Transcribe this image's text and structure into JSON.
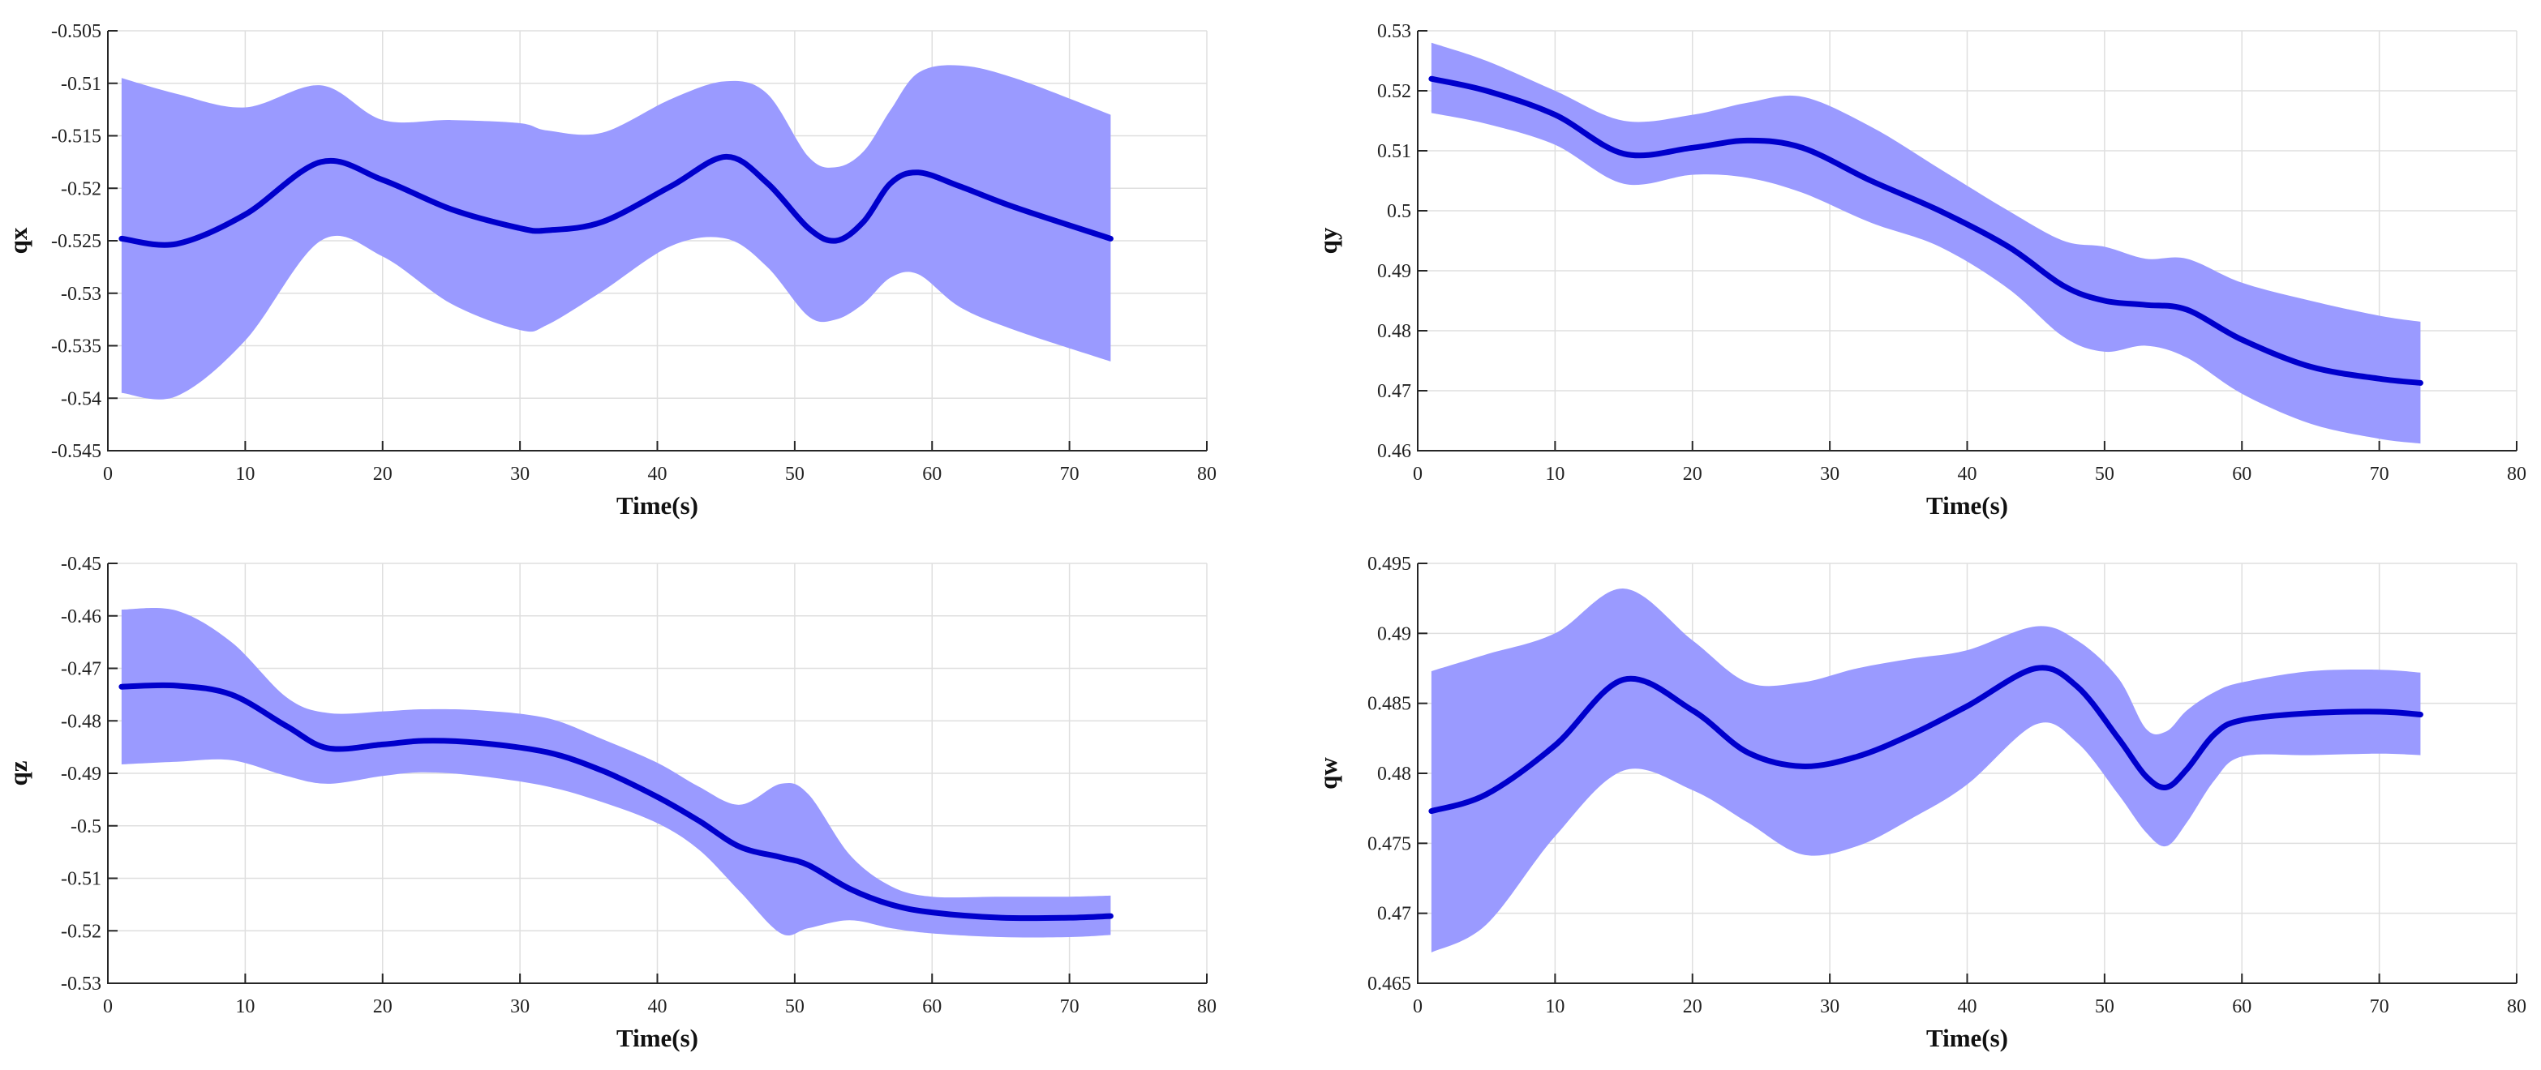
{
  "colors": {
    "mean": "#0000CC",
    "band": "#9A9AFF",
    "grid": "#DFDFDF",
    "axis": "#262626"
  },
  "chart_data": [
    {
      "type": "line",
      "name": "qx",
      "xlabel": "Time(s)",
      "ylabel": "qx",
      "xlim": [
        0,
        80
      ],
      "ylim": [
        -0.545,
        -0.505
      ],
      "xticks": [
        0,
        10,
        20,
        30,
        40,
        50,
        60,
        70,
        80
      ],
      "xtick_labels": [
        "0",
        "10",
        "20",
        "30",
        "40",
        "50",
        "60",
        "70",
        "80"
      ],
      "yticks": [
        -0.545,
        -0.54,
        -0.535,
        -0.53,
        -0.525,
        -0.52,
        -0.515,
        -0.51,
        -0.505
      ],
      "ytick_labels": [
        "-0.545",
        "-0.54",
        "-0.535",
        "-0.53",
        "-0.525",
        "-0.52",
        "-0.515",
        "-0.51",
        "-0.505"
      ],
      "grid": true,
      "x": [
        1,
        5,
        10,
        15.5,
        20,
        25,
        30,
        32,
        36,
        41,
        45,
        48,
        51,
        53,
        55,
        57,
        59,
        62,
        66,
        73
      ],
      "mean": [
        -0.5248,
        -0.5253,
        -0.5225,
        -0.5175,
        -0.5192,
        -0.522,
        -0.5238,
        -0.524,
        -0.5232,
        -0.5198,
        -0.517,
        -0.5195,
        -0.5238,
        -0.525,
        -0.5232,
        -0.5195,
        -0.5185,
        -0.5198,
        -0.5218,
        -0.5248
      ],
      "upper": [
        -0.5095,
        -0.511,
        -0.5123,
        -0.5102,
        -0.5135,
        -0.5135,
        -0.5138,
        -0.5145,
        -0.5147,
        -0.5115,
        -0.5098,
        -0.511,
        -0.517,
        -0.518,
        -0.5165,
        -0.5125,
        -0.509,
        -0.5083,
        -0.5095,
        -0.513
      ],
      "lower": [
        -0.5395,
        -0.5398,
        -0.5345,
        -0.525,
        -0.5265,
        -0.531,
        -0.5335,
        -0.533,
        -0.5298,
        -0.5255,
        -0.5248,
        -0.5275,
        -0.5322,
        -0.5325,
        -0.531,
        -0.5285,
        -0.5282,
        -0.5313,
        -0.5335,
        -0.5365
      ]
    },
    {
      "type": "line",
      "name": "qy",
      "xlabel": "Time(s)",
      "ylabel": "qy",
      "xlim": [
        0,
        80
      ],
      "ylim": [
        0.46,
        0.53
      ],
      "xticks": [
        0,
        10,
        20,
        30,
        40,
        50,
        60,
        70,
        80
      ],
      "xtick_labels": [
        "0",
        "10",
        "20",
        "30",
        "40",
        "50",
        "60",
        "70",
        "80"
      ],
      "yticks": [
        0.46,
        0.47,
        0.48,
        0.49,
        0.5,
        0.51,
        0.52,
        0.53
      ],
      "ytick_labels": [
        "0.46",
        "0.47",
        "0.48",
        "0.49",
        "0.5",
        "0.51",
        "0.52",
        "0.53"
      ],
      "grid": true,
      "x": [
        1,
        5,
        10,
        15,
        20,
        24,
        28,
        33,
        38,
        43,
        47,
        50,
        53,
        56,
        60,
        65,
        70,
        73
      ],
      "mean": [
        0.522,
        0.52,
        0.516,
        0.5095,
        0.5105,
        0.5117,
        0.5105,
        0.505,
        0.5,
        0.494,
        0.4875,
        0.485,
        0.4843,
        0.4835,
        0.4785,
        0.474,
        0.472,
        0.4713
      ],
      "upper": [
        0.528,
        0.525,
        0.52,
        0.515,
        0.516,
        0.518,
        0.519,
        0.514,
        0.507,
        0.5,
        0.495,
        0.494,
        0.492,
        0.492,
        0.488,
        0.485,
        0.4825,
        0.4815
      ],
      "lower": [
        0.5163,
        0.5145,
        0.511,
        0.5045,
        0.506,
        0.5055,
        0.503,
        0.498,
        0.494,
        0.487,
        0.479,
        0.4765,
        0.4775,
        0.4755,
        0.4695,
        0.4645,
        0.462,
        0.4612
      ]
    },
    {
      "type": "line",
      "name": "qz",
      "xlabel": "Time(s)",
      "ylabel": "qz",
      "xlim": [
        0,
        80
      ],
      "ylim": [
        -0.53,
        -0.45
      ],
      "xticks": [
        0,
        10,
        20,
        30,
        40,
        50,
        60,
        70,
        80
      ],
      "xtick_labels": [
        "0",
        "10",
        "20",
        "30",
        "40",
        "50",
        "60",
        "70",
        "80"
      ],
      "yticks": [
        -0.53,
        -0.52,
        -0.51,
        -0.5,
        -0.49,
        -0.48,
        -0.47,
        -0.46,
        -0.45
      ],
      "ytick_labels": [
        "-0.53",
        "-0.52",
        "-0.51",
        "-0.5",
        "-0.49",
        "-0.48",
        "-0.47",
        "-0.46",
        "-0.45"
      ],
      "grid": true,
      "x": [
        1,
        5,
        9,
        13,
        16,
        20,
        23,
        27,
        32,
        36,
        40,
        43,
        46,
        49,
        51,
        54,
        57,
        60,
        65,
        70,
        73
      ],
      "mean": [
        -0.4735,
        -0.4733,
        -0.475,
        -0.481,
        -0.4852,
        -0.4845,
        -0.4838,
        -0.4842,
        -0.486,
        -0.4895,
        -0.4945,
        -0.499,
        -0.504,
        -0.506,
        -0.5075,
        -0.512,
        -0.515,
        -0.5165,
        -0.5175,
        -0.5175,
        -0.5172
      ],
      "upper": [
        -0.4588,
        -0.459,
        -0.465,
        -0.4755,
        -0.4785,
        -0.4782,
        -0.4778,
        -0.478,
        -0.4795,
        -0.4835,
        -0.488,
        -0.4925,
        -0.496,
        -0.492,
        -0.494,
        -0.5055,
        -0.5115,
        -0.5135,
        -0.5135,
        -0.5135,
        -0.5133
      ],
      "lower": [
        -0.4883,
        -0.4878,
        -0.4875,
        -0.4905,
        -0.492,
        -0.4905,
        -0.4898,
        -0.4905,
        -0.4925,
        -0.4955,
        -0.4995,
        -0.5045,
        -0.5125,
        -0.5205,
        -0.5195,
        -0.518,
        -0.5195,
        -0.5205,
        -0.5212,
        -0.5212,
        -0.5208
      ]
    },
    {
      "type": "line",
      "name": "qw",
      "xlabel": "Time(s)",
      "ylabel": "qw",
      "xlim": [
        0,
        80
      ],
      "ylim": [
        0.465,
        0.495
      ],
      "xticks": [
        0,
        10,
        20,
        30,
        40,
        50,
        60,
        70,
        80
      ],
      "xtick_labels": [
        "0",
        "10",
        "20",
        "30",
        "40",
        "50",
        "60",
        "70",
        "80"
      ],
      "yticks": [
        0.465,
        0.47,
        0.475,
        0.48,
        0.485,
        0.49,
        0.495
      ],
      "ytick_labels": [
        "0.465",
        "0.47",
        "0.475",
        "0.48",
        "0.485",
        "0.49",
        "0.495"
      ],
      "grid": true,
      "x": [
        1,
        5,
        10,
        15,
        20,
        24,
        28,
        32,
        36,
        40,
        45,
        48,
        51,
        53,
        54.5,
        56,
        58,
        60,
        65,
        70,
        73
      ],
      "mean": [
        0.4773,
        0.4785,
        0.482,
        0.4867,
        0.4845,
        0.4815,
        0.4805,
        0.4812,
        0.4828,
        0.4848,
        0.4875,
        0.4862,
        0.4825,
        0.4798,
        0.479,
        0.4803,
        0.4828,
        0.4838,
        0.4843,
        0.4844,
        0.4842
      ],
      "upper": [
        0.4873,
        0.4885,
        0.49,
        0.4932,
        0.4895,
        0.4865,
        0.4865,
        0.4875,
        0.4882,
        0.4888,
        0.4905,
        0.4895,
        0.4868,
        0.4832,
        0.483,
        0.4845,
        0.4858,
        0.4865,
        0.4873,
        0.4874,
        0.4872
      ],
      "lower": [
        0.4672,
        0.4692,
        0.4755,
        0.4802,
        0.4788,
        0.4765,
        0.4742,
        0.4748,
        0.4768,
        0.4792,
        0.4835,
        0.4822,
        0.4785,
        0.4758,
        0.4748,
        0.4765,
        0.4795,
        0.4812,
        0.4813,
        0.4814,
        0.4813
      ]
    }
  ]
}
